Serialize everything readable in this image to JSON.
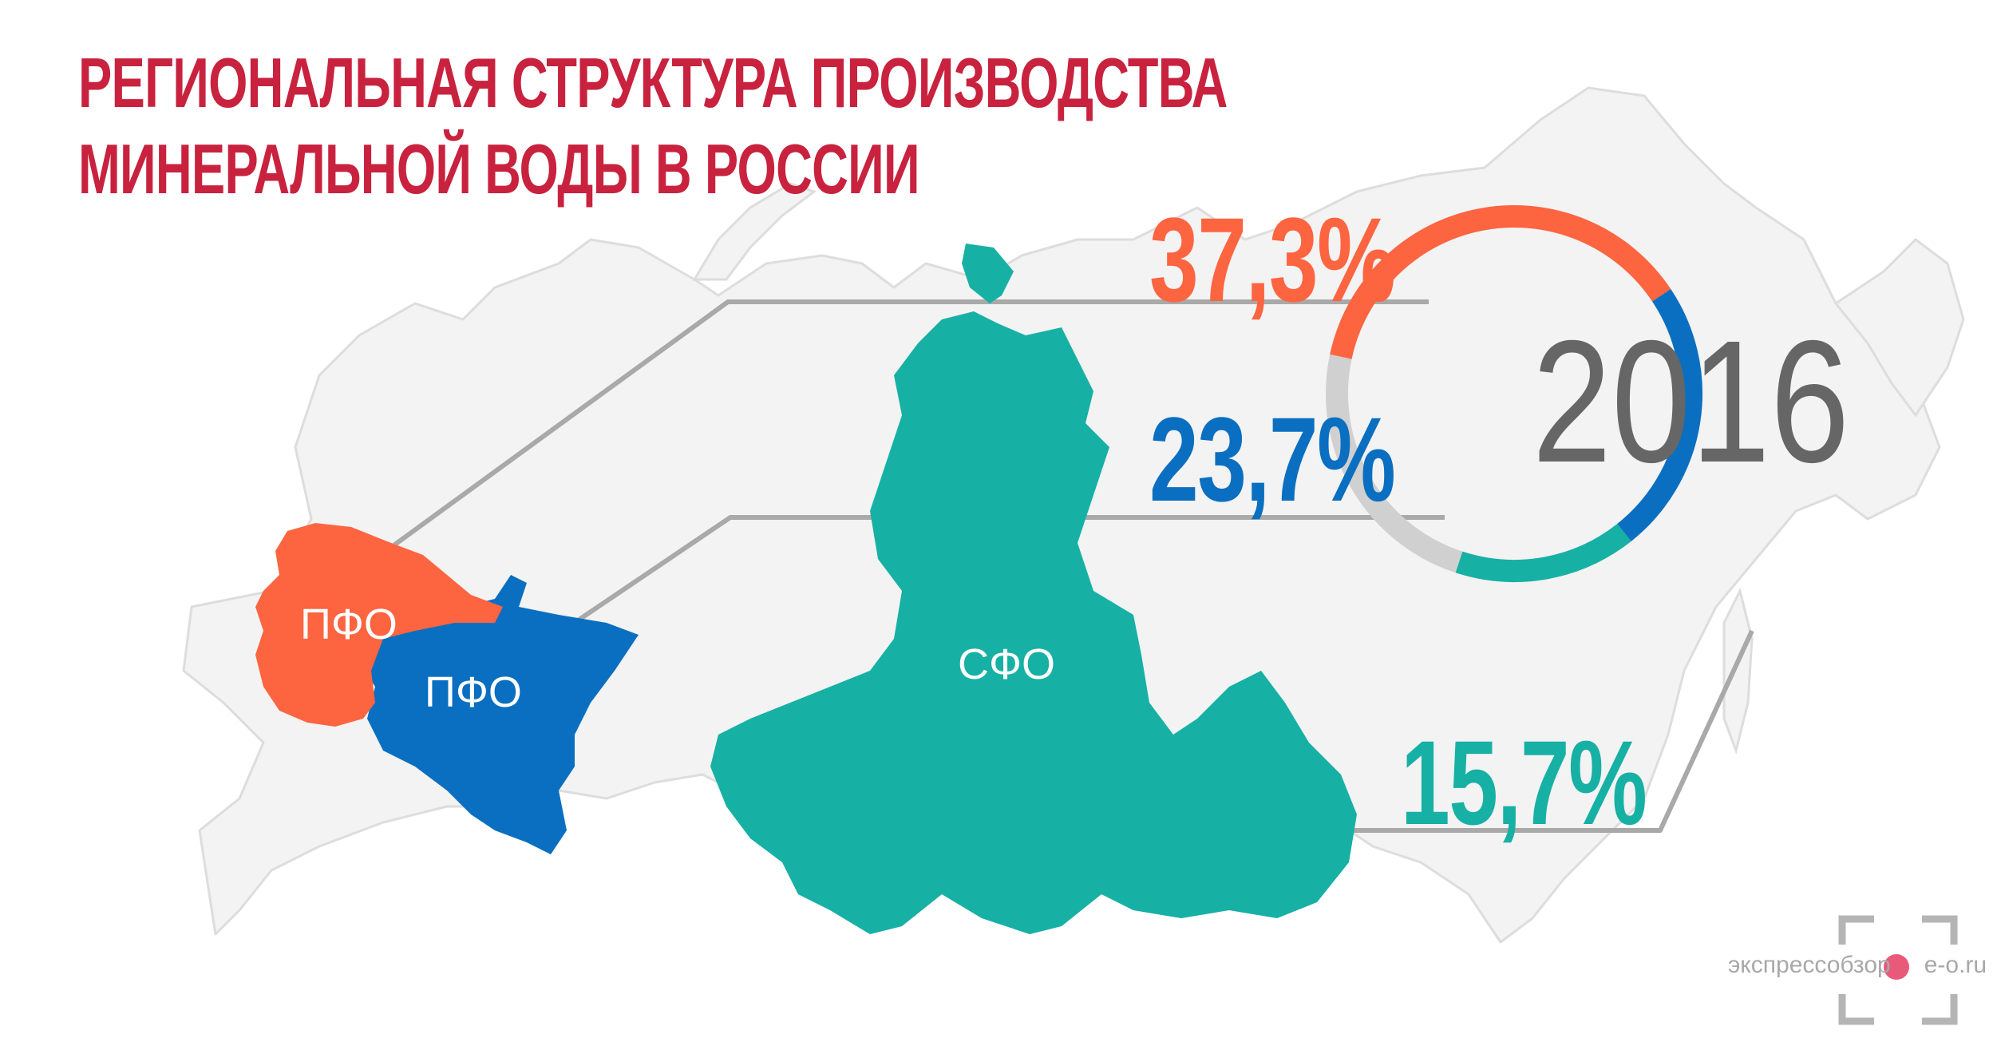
{
  "title": {
    "line1": "РЕГИОНАЛЬНАЯ СТРУКТУРА ПРОИЗВОДСТВА",
    "line2": "МИНЕРАЛЬНОЙ ВОДЫ В РОССИИ"
  },
  "year": "2016",
  "colors": {
    "title": "#c8223f",
    "orange": "#fd6440",
    "blue": "#0a6fc0",
    "teal": "#17b0a4",
    "gray_ring": "#d0d0d0",
    "map_fill": "#f3f3f3",
    "map_stroke": "#dddddd",
    "connector": "#a9a9a9"
  },
  "regions": [
    {
      "id": "pfo-orange",
      "label": "ПФО",
      "percent": "37,3%",
      "value": 37.3,
      "color": "orange"
    },
    {
      "id": "pfo-blue",
      "label": "ПФО",
      "percent": "23,7%",
      "value": 23.7,
      "color": "blue"
    },
    {
      "id": "sfo",
      "label": "СФО",
      "percent": "15,7%",
      "value": 15.7,
      "color": "teal"
    }
  ],
  "donut": {
    "segments": [
      {
        "value": 37.3,
        "color": "orange"
      },
      {
        "value": 23.7,
        "color": "blue"
      },
      {
        "value": 15.7,
        "color": "teal"
      },
      {
        "value": 23.3,
        "color": "gray_ring"
      }
    ]
  },
  "logo": {
    "text": "экспрессобзор",
    "domain": "e-o.ru",
    "icon": "focus-frame-icon"
  }
}
